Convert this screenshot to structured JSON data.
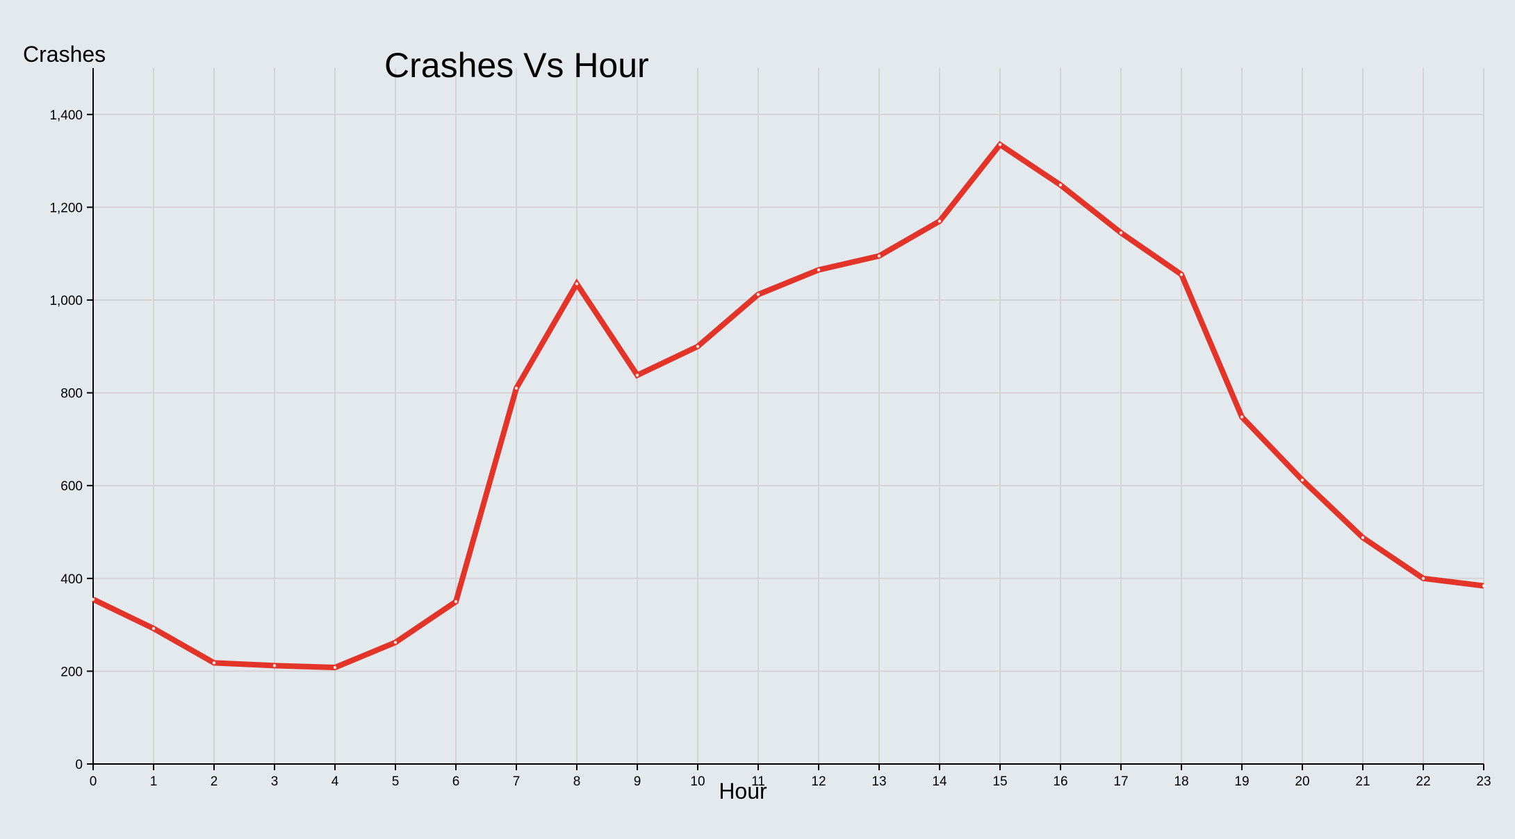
{
  "colors": {
    "background": "#e4e9ed",
    "grid": "#d3d3d6",
    "line": "#e3342a"
  },
  "chart_data": {
    "type": "line",
    "title": "Crashes Vs Hour",
    "xlabel": "Hour",
    "ylabel": "Crashes",
    "x": [
      0,
      1,
      2,
      3,
      4,
      5,
      6,
      7,
      8,
      9,
      10,
      11,
      12,
      13,
      14,
      15,
      16,
      17,
      18,
      19,
      20,
      21,
      22,
      23
    ],
    "series": [
      {
        "values": [
          355,
          292,
          218,
          212,
          208,
          262,
          350,
          810,
          1035,
          838,
          900,
          1012,
          1065,
          1095,
          1170,
          1335,
          1248,
          1145,
          1055,
          748,
          612,
          488,
          400,
          384
        ]
      }
    ],
    "xlim": [
      0,
      23
    ],
    "ylim": [
      0,
      1500
    ],
    "y_ticks": [
      0,
      200,
      400,
      600,
      800,
      1000,
      1200,
      1400
    ],
    "y_tick_labels": [
      "0",
      "200",
      "400",
      "600",
      "800",
      "1,000",
      "1,200",
      "1,400"
    ],
    "x_tick_labels": [
      "0",
      "1",
      "2",
      "3",
      "4",
      "5",
      "6",
      "7",
      "8",
      "9",
      "10",
      "11",
      "12",
      "13",
      "14",
      "15",
      "16",
      "17",
      "18",
      "19",
      "20",
      "21",
      "22",
      "23"
    ],
    "grid": true,
    "legend": "none"
  }
}
